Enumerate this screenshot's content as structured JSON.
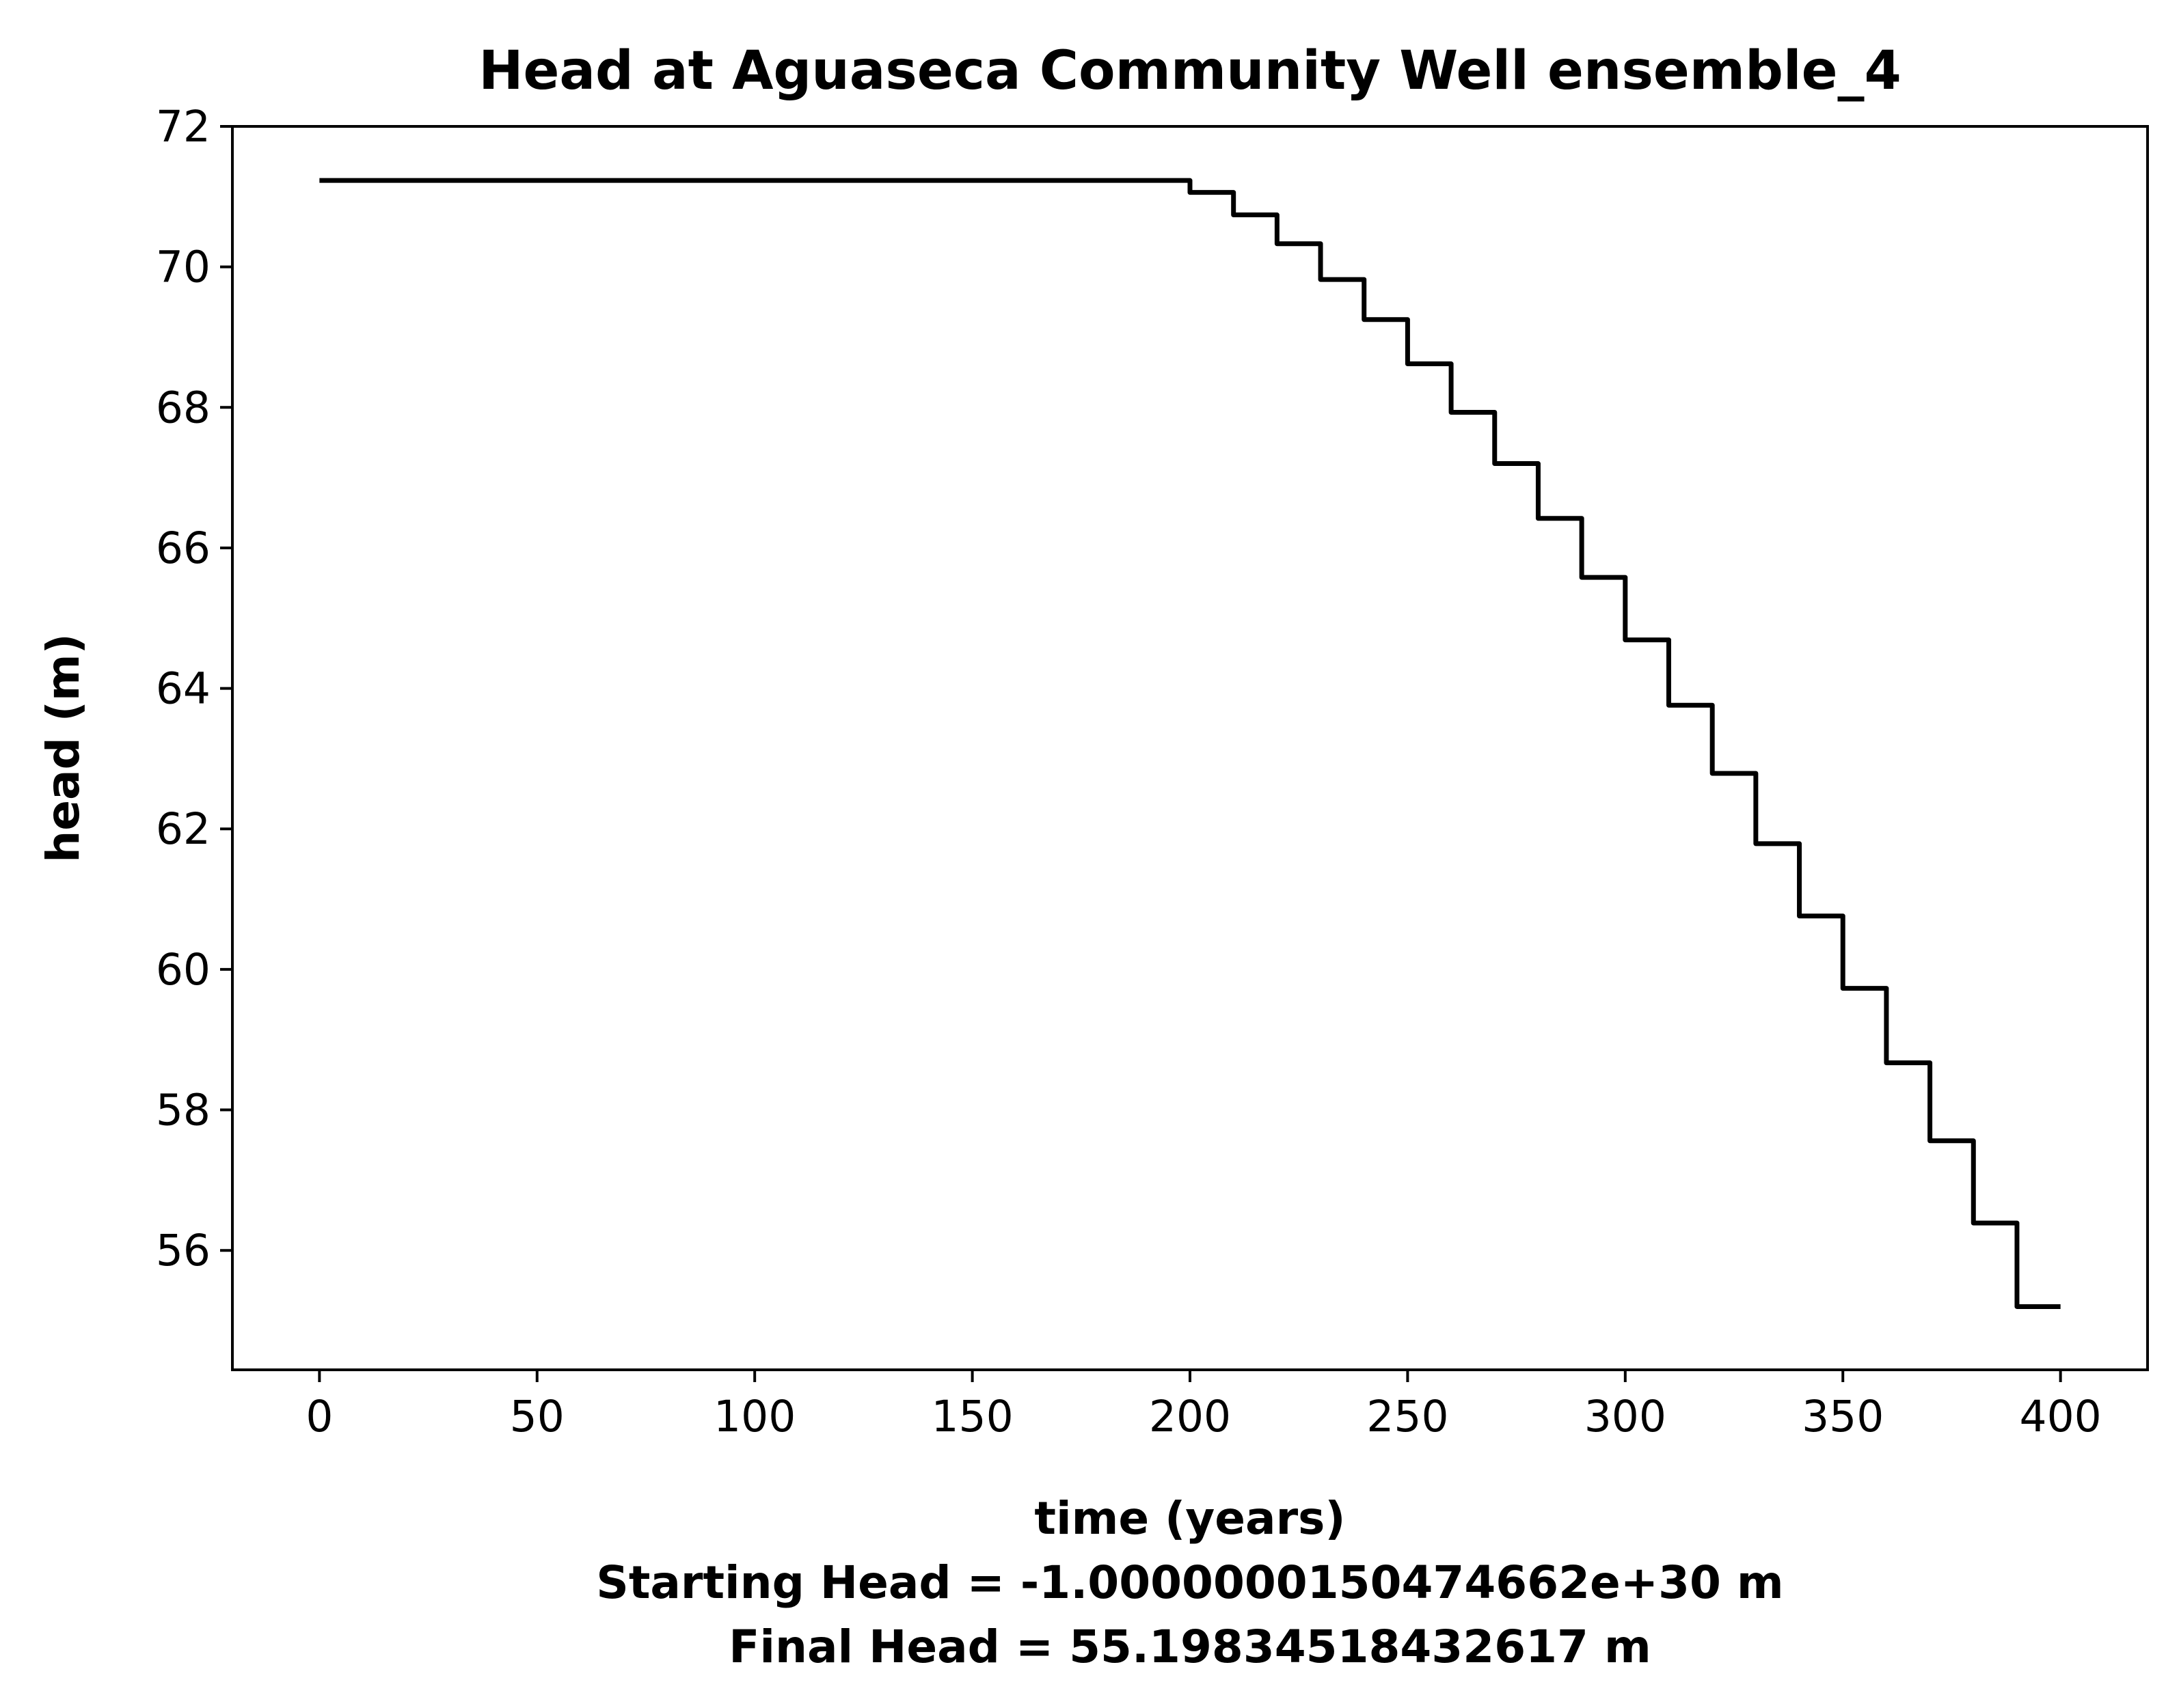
{
  "chart_data": {
    "type": "line",
    "title": "Head at Aguaseca Community Well ensemble_4",
    "xlabel": "time (years)",
    "ylabel": "head (m)",
    "xlabel_lines": [
      "time (years)",
      "Starting Head = -1.0000000150474662e+30 m",
      "Final Head = 55.19834518432617 m"
    ],
    "xlim": [
      -20,
      420
    ],
    "ylim": [
      54.3,
      72.0
    ],
    "xticks": [
      0,
      50,
      100,
      150,
      200,
      250,
      300,
      350,
      400
    ],
    "yticks": [
      56,
      58,
      60,
      62,
      64,
      66,
      68,
      70,
      72
    ],
    "grid": false,
    "line_color": "#000000",
    "series": [
      {
        "step": true,
        "x": [
          0,
          200,
          210,
          220,
          230,
          240,
          250,
          260,
          270,
          280,
          290,
          300,
          310,
          320,
          330,
          340,
          350,
          360,
          370,
          380,
          390,
          400
        ],
        "y": [
          71.23,
          71.06,
          70.74,
          70.33,
          69.82,
          69.25,
          68.62,
          67.93,
          67.2,
          66.42,
          65.58,
          64.69,
          63.76,
          62.79,
          61.79,
          60.76,
          59.73,
          58.67,
          57.56,
          56.39,
          55.2,
          55.2
        ]
      }
    ]
  }
}
